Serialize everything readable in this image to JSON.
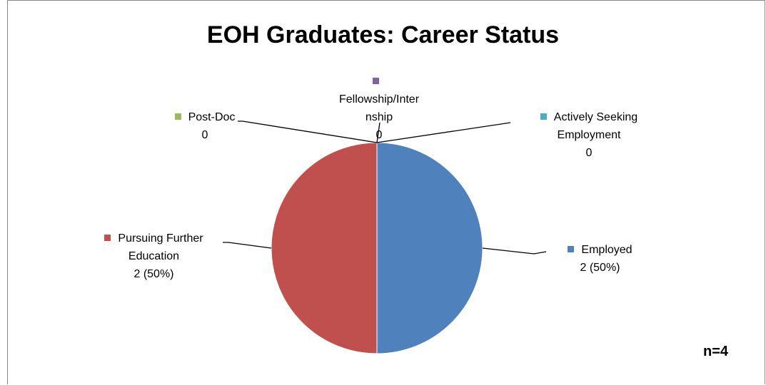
{
  "chart_data": {
    "type": "pie",
    "title": "EOH Graduates: Career Status",
    "categories": [
      "Employed",
      "Pursuing Further Education",
      "Post-Doc",
      "Fellowship/Internship",
      "Actively Seeking Employment"
    ],
    "values": [
      2,
      2,
      0,
      0,
      0
    ],
    "value_labels": [
      "2 (50%)",
      "2 (50%)",
      "0",
      "0",
      "0"
    ],
    "colors": [
      "#4f81bd",
      "#c0504d",
      "#9bbb59",
      "#8064a2",
      "#4bacc6"
    ],
    "annotation": "n=4"
  }
}
